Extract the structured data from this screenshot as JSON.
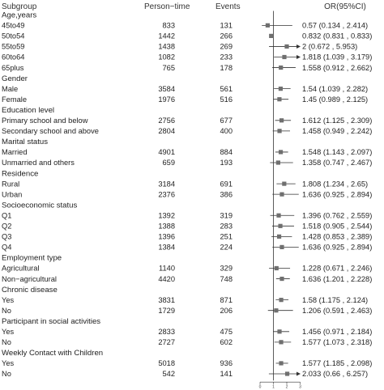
{
  "chart_data": {
    "type": "forest",
    "headers": {
      "subgroup": "Subgroup",
      "person_time": "Person−time",
      "events": "Events",
      "or": "OR(95%CI)"
    },
    "x_ticks": [
      "0",
      "1",
      "2",
      "3"
    ],
    "xlim": [
      0,
      3
    ],
    "reference_line": 1,
    "rows": [
      {
        "kind": "group",
        "label": "Age,years"
      },
      {
        "kind": "item",
        "label": "45to49",
        "person_time": "833",
        "events": "131",
        "or_text": "0.57 (0.134 , 2.414)",
        "or": 0.57,
        "lo": 0.134,
        "hi": 2.414
      },
      {
        "kind": "item",
        "label": "50to54",
        "person_time": "1442",
        "events": "266",
        "or_text": "0.832 (0.831 , 0.833)",
        "or": 0.832,
        "lo": 0.831,
        "hi": 0.833
      },
      {
        "kind": "item",
        "label": "55to59",
        "person_time": "1438",
        "events": "269",
        "or_text": "2 (0.672 , 5.953)",
        "or": 2.0,
        "lo": 0.672,
        "hi": 5.953
      },
      {
        "kind": "item",
        "label": "60to64",
        "person_time": "1082",
        "events": "233",
        "or_text": "1.818 (1.039 , 3.179)",
        "or": 1.818,
        "lo": 1.039,
        "hi": 3.179
      },
      {
        "kind": "item",
        "label": "65plus",
        "person_time": "765",
        "events": "178",
        "or_text": "1.558 (0.912 , 2.662)",
        "or": 1.558,
        "lo": 0.912,
        "hi": 2.662
      },
      {
        "kind": "group",
        "label": "Gender"
      },
      {
        "kind": "item",
        "label": "Male",
        "person_time": "3584",
        "events": "561",
        "or_text": "1.54 (1.039 , 2.282)",
        "or": 1.54,
        "lo": 1.039,
        "hi": 2.282
      },
      {
        "kind": "item",
        "label": "Female",
        "person_time": "1976",
        "events": "516",
        "or_text": "1.45 (0.989 , 2.125)",
        "or": 1.45,
        "lo": 0.989,
        "hi": 2.125
      },
      {
        "kind": "group",
        "label": "Education level"
      },
      {
        "kind": "item",
        "label": "Primary school and below",
        "person_time": "2756",
        "events": "677",
        "or_text": "1.612 (1.125 , 2.309)",
        "or": 1.612,
        "lo": 1.125,
        "hi": 2.309
      },
      {
        "kind": "item",
        "label": "Secondary school and above",
        "person_time": "2804",
        "events": "400",
        "or_text": "1.458 (0.949 , 2.242)",
        "or": 1.458,
        "lo": 0.949,
        "hi": 2.242
      },
      {
        "kind": "group",
        "label": "Marital status"
      },
      {
        "kind": "item",
        "label": "Married",
        "person_time": "4901",
        "events": "884",
        "or_text": "1.548 (1.143 , 2.097)",
        "or": 1.548,
        "lo": 1.143,
        "hi": 2.097
      },
      {
        "kind": "item",
        "label": "Unmarried and others",
        "person_time": "659",
        "events": "193",
        "or_text": "1.358 (0.747 , 2.467)",
        "or": 1.358,
        "lo": 0.747,
        "hi": 2.467
      },
      {
        "kind": "group",
        "label": "Residence"
      },
      {
        "kind": "item",
        "label": "Rural",
        "person_time": "3184",
        "events": "691",
        "or_text": "1.808 (1.234 , 2.65)",
        "or": 1.808,
        "lo": 1.234,
        "hi": 2.65
      },
      {
        "kind": "item",
        "label": "Urban",
        "person_time": "2376",
        "events": "386",
        "or_text": "1.636 (0.925 , 2.894)",
        "or": 1.636,
        "lo": 0.925,
        "hi": 2.894
      },
      {
        "kind": "group",
        "label": "Socioeconomic status"
      },
      {
        "kind": "item",
        "label": "Q1",
        "person_time": "1392",
        "events": "319",
        "or_text": "1.396 (0.762 , 2.559)",
        "or": 1.396,
        "lo": 0.762,
        "hi": 2.559
      },
      {
        "kind": "item",
        "label": "Q2",
        "person_time": "1388",
        "events": "283",
        "or_text": "1.518 (0.905 , 2.544)",
        "or": 1.518,
        "lo": 0.905,
        "hi": 2.544
      },
      {
        "kind": "item",
        "label": "Q3",
        "person_time": "1396",
        "events": "251",
        "or_text": "1.428 (0.853 , 2.389)",
        "or": 1.428,
        "lo": 0.853,
        "hi": 2.389
      },
      {
        "kind": "item",
        "label": "Q4",
        "person_time": "1384",
        "events": "224",
        "or_text": "1.636 (0.925 , 2.894)",
        "or": 1.636,
        "lo": 0.925,
        "hi": 2.894
      },
      {
        "kind": "group",
        "label": "Employment type"
      },
      {
        "kind": "item",
        "label": "Agricultural",
        "person_time": "1140",
        "events": "329",
        "or_text": "1.228 (0.671 , 2.246)",
        "or": 1.228,
        "lo": 0.671,
        "hi": 2.246
      },
      {
        "kind": "item",
        "label": "Non−agricultural",
        "person_time": "4420",
        "events": "748",
        "or_text": "1.636 (1.201 , 2.228)",
        "or": 1.636,
        "lo": 1.201,
        "hi": 2.228
      },
      {
        "kind": "group",
        "label": "Chronic disease"
      },
      {
        "kind": "item",
        "label": "Yes",
        "person_time": "3831",
        "events": "871",
        "or_text": "1.58 (1.175 , 2.124)",
        "or": 1.58,
        "lo": 1.175,
        "hi": 2.124
      },
      {
        "kind": "item",
        "label": "No",
        "person_time": "1729",
        "events": "206",
        "or_text": "1.206 (0.591 , 2.463)",
        "or": 1.206,
        "lo": 0.591,
        "hi": 2.463
      },
      {
        "kind": "group",
        "label": "Participant in social activities"
      },
      {
        "kind": "item",
        "label": "Yes",
        "person_time": "2833",
        "events": "475",
        "or_text": "1.456 (0.971 , 2.184)",
        "or": 1.456,
        "lo": 0.971,
        "hi": 2.184
      },
      {
        "kind": "item",
        "label": "No",
        "person_time": "2727",
        "events": "602",
        "or_text": "1.577 (1.073 , 2.318)",
        "or": 1.577,
        "lo": 1.073,
        "hi": 2.318
      },
      {
        "kind": "group",
        "label": "Weekly Contact with Children"
      },
      {
        "kind": "item",
        "label": "Yes",
        "person_time": "5018",
        "events": "936",
        "or_text": "1.577 (1.185 , 2.098)",
        "or": 1.577,
        "lo": 1.185,
        "hi": 2.098
      },
      {
        "kind": "item",
        "label": "No",
        "person_time": "542",
        "events": "141",
        "or_text": "2.033 (0.66 , 6.257)",
        "or": 2.033,
        "lo": 0.66,
        "hi": 6.257
      }
    ]
  }
}
